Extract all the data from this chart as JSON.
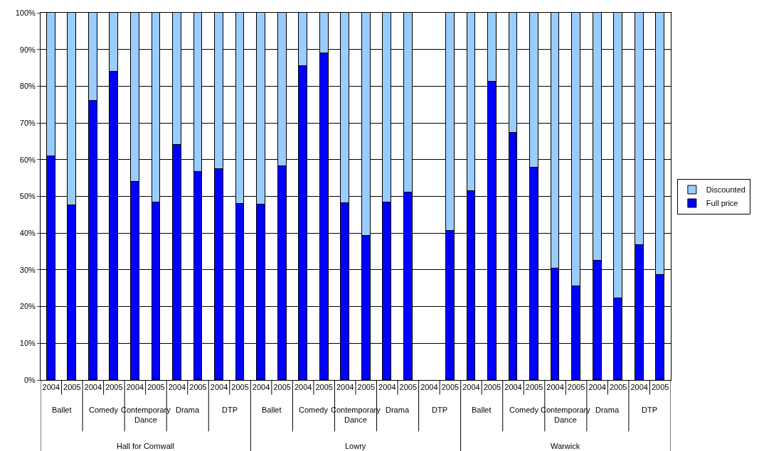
{
  "chart_data": {
    "type": "bar",
    "stacked": true,
    "categories": [
      "2004",
      "2005",
      "2004",
      "2005",
      "2004",
      "2005",
      "2004",
      "2005",
      "2004",
      "2005",
      "2004",
      "2005",
      "2004",
      "2005",
      "2004",
      "2005",
      "2004",
      "2005",
      "2004",
      "2005",
      "2004",
      "2005",
      "2004",
      "2005",
      "2004",
      "2005",
      "2004",
      "2005",
      "2004",
      "2005"
    ],
    "series": [
      {
        "name": "Full price",
        "color": "#0000ff",
        "values": [
          61,
          47.5,
          76,
          84,
          54,
          48.3,
          64,
          56.6,
          57.5,
          48,
          47.8,
          58.3,
          85.4,
          89,
          48.2,
          39.3,
          48.4,
          51,
          null,
          40.6,
          51.5,
          81.2,
          67.4,
          57.9,
          30.3,
          25.5,
          32.5,
          22.2,
          36.7,
          28.7
        ]
      },
      {
        "name": "Discounted",
        "color": "#99ccff",
        "values": [
          39,
          52.5,
          24,
          16,
          46,
          51.7,
          36,
          43.4,
          42.5,
          52,
          52.2,
          41.7,
          14.6,
          11,
          51.8,
          60.7,
          51.6,
          49,
          null,
          59.4,
          48.5,
          18.8,
          32.6,
          42.1,
          69.7,
          74.5,
          67.5,
          77.8,
          63.3,
          71.3
        ]
      }
    ],
    "annotations": [
      "Ballet",
      "Comedy",
      "Contemporary Dance",
      "Drama",
      "DTP",
      "Ballet",
      "Comedy",
      "Contemporary Dance",
      "Drama",
      "DTP",
      "Ballet",
      "Comedy",
      "Contemporary Dance",
      "Drama",
      "DTP",
      "Hall for Cornwall",
      "Lowry",
      "Warwick"
    ],
    "ylim": [
      0,
      100
    ],
    "yticks": [
      {
        "value": 0,
        "label": "0%"
      },
      {
        "value": 10,
        "label": "10%"
      },
      {
        "value": 20,
        "label": "20%"
      },
      {
        "value": 30,
        "label": "30%"
      },
      {
        "value": 40,
        "label": "40%"
      },
      {
        "value": 50,
        "label": "50%"
      },
      {
        "value": 60,
        "label": "60%"
      },
      {
        "value": 70,
        "label": "70%"
      },
      {
        "value": 80,
        "label": "80%"
      },
      {
        "value": 90,
        "label": "90%"
      },
      {
        "value": 100,
        "label": "100%"
      }
    ],
    "grid": "y",
    "legend": "right"
  }
}
